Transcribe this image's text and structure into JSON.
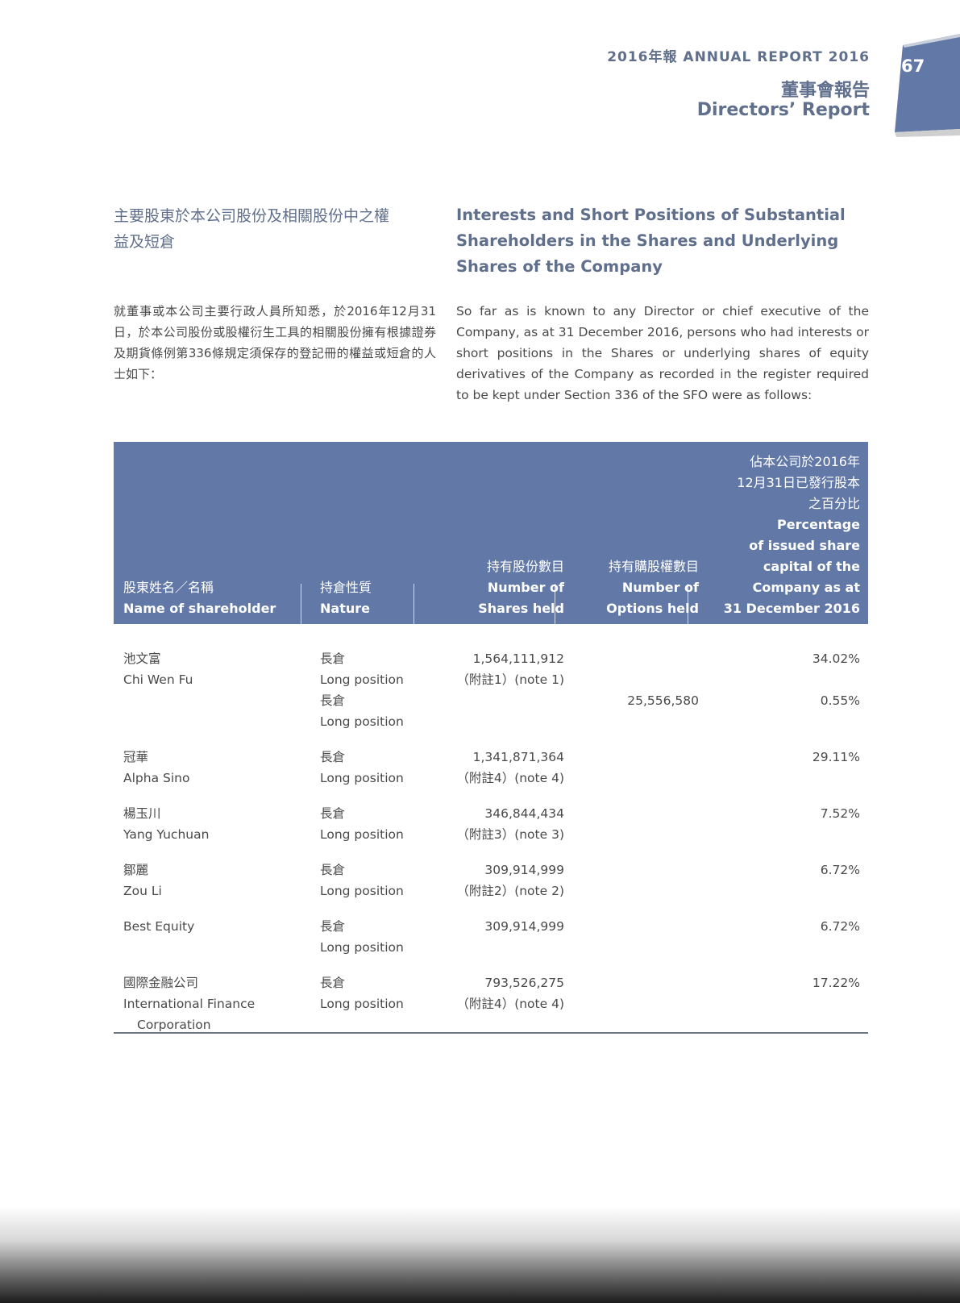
{
  "header": {
    "year_title": "2016年報 ANNUAL REPORT 2016",
    "section_zh": "董事會報告",
    "section_en": "Directors’ Report",
    "page_number": "67",
    "tab_color": "#6279a8"
  },
  "section": {
    "heading_zh_1": "主要股東於本公司股份及相關股份中之權",
    "heading_zh_2": "益及短倉",
    "heading_en_1": "Interests and Short Positions of Substantial",
    "heading_en_2": "Shareholders in the Shares and Underlying",
    "heading_en_3": "Shares of the Company",
    "intro_zh": "就董事或本公司主要行政人員所知悉，於2016年12月31日，於本公司股份或股權衍生工具的相關股份擁有根據證券及期貨條例第336條規定須保存的登記冊的權益或短倉的人士如下：",
    "intro_en": "So far as is known to any Director or chief executive of the Company, as at 31 December 2016, persons who had interests or short positions in the Shares or underlying shares of equity derivatives of the Company as recorded in the register required to be kept under Section 336 of the SFO were as follows:"
  },
  "table": {
    "header_color": "#6279a8",
    "headers": {
      "name_zh": "股東姓名／名稱",
      "name_en": "Name of shareholder",
      "nature_zh": "持倉性質",
      "nature_en": "Nature",
      "shares_zh": "持有股份數目",
      "shares_en_1": "Number of",
      "shares_en_2": "Shares held",
      "options_zh": "持有購股權數目",
      "options_en_1": "Number of",
      "options_en_2": "Options held",
      "pct_zh_1": "佔本公司於2016年",
      "pct_zh_2": "12月31日已發行股本",
      "pct_zh_3": "之百分比",
      "pct_en_1": "Percentage",
      "pct_en_2": "of issued share",
      "pct_en_3": "capital of the",
      "pct_en_4": "Company as at",
      "pct_en_5": "31 December 2016"
    },
    "rows": [
      {
        "name_zh": "池文富",
        "name_en": "Chi Wen Fu",
        "nature_zh": "長倉",
        "nature_en": "Long position",
        "shares": "1,564,111,912",
        "note": "（附註1）(note 1)",
        "options": "",
        "pct": "34.02%",
        "nature2_zh": "長倉",
        "nature2_en": "Long position",
        "options2": "25,556,580",
        "pct2": "0.55%"
      },
      {
        "name_zh": "冠華",
        "name_en": "Alpha Sino",
        "nature_zh": "長倉",
        "nature_en": "Long position",
        "shares": "1,341,871,364",
        "note": "（附註4）(note 4)",
        "options": "",
        "pct": "29.11%"
      },
      {
        "name_zh": "楊玉川",
        "name_en": "Yang Yuchuan",
        "nature_zh": "長倉",
        "nature_en": "Long position",
        "shares": "346,844,434",
        "note": "（附註3）(note 3)",
        "options": "",
        "pct": "7.52%"
      },
      {
        "name_zh": "鄒麗",
        "name_en": "Zou Li",
        "nature_zh": "長倉",
        "nature_en": "Long position",
        "shares": "309,914,999",
        "note": "（附註2）(note 2)",
        "options": "",
        "pct": "6.72%"
      },
      {
        "name_zh": "",
        "name_en": "Best Equity",
        "nature_zh": "長倉",
        "nature_en": "Long position",
        "shares": "309,914,999",
        "note": "",
        "options": "",
        "pct": "6.72%"
      },
      {
        "name_zh": "國際金融公司",
        "name_en": "International Finance",
        "name_en_2": "Corporation",
        "nature_zh": "長倉",
        "nature_en": "Long position",
        "shares": "793,526,275",
        "note": "（附註4）(note 4)",
        "options": "",
        "pct": "17.22%"
      }
    ]
  }
}
